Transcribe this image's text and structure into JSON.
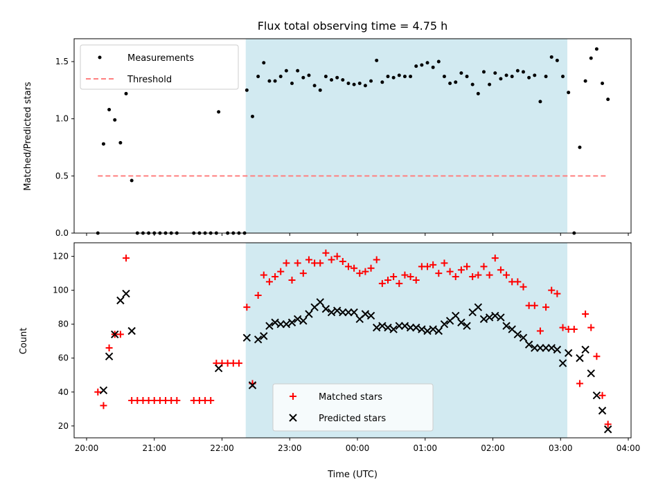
{
  "chart_data": [
    {
      "type": "scatter",
      "title": "Flux total observing time = 4.75 h",
      "ylabel": "Matched/Predicted stars",
      "ylim": [
        0,
        1.7
      ],
      "yticks": [
        0.0,
        0.5,
        1.0,
        1.5
      ],
      "ytick_labels": [
        "0.0",
        "0.5",
        "1.0",
        "1.5"
      ],
      "xlim": [
        "20:00",
        "04:00"
      ],
      "shaded_interval": [
        "22:21",
        "03:06"
      ],
      "shade_color": "#add8e6",
      "legend_position": "upper left",
      "series": [
        {
          "name": "Measurements",
          "marker": "dot",
          "color": "#000000",
          "points": [
            [
              "20:10",
              0.0
            ],
            [
              "20:15",
              0.78
            ],
            [
              "20:20",
              1.08
            ],
            [
              "20:25",
              0.99
            ],
            [
              "20:30",
              0.79
            ],
            [
              "20:35",
              1.22
            ],
            [
              "20:40",
              0.46
            ],
            [
              "20:45",
              0.0
            ],
            [
              "20:50",
              0.0
            ],
            [
              "20:55",
              0.0
            ],
            [
              "21:00",
              0.0
            ],
            [
              "21:05",
              0.0
            ],
            [
              "21:10",
              0.0
            ],
            [
              "21:15",
              0.0
            ],
            [
              "21:20",
              0.0
            ],
            [
              "21:35",
              0.0
            ],
            [
              "21:40",
              0.0
            ],
            [
              "21:45",
              0.0
            ],
            [
              "21:50",
              0.0
            ],
            [
              "21:55",
              0.0
            ],
            [
              "21:57",
              1.06
            ],
            [
              "22:05",
              0.0
            ],
            [
              "22:10",
              0.0
            ],
            [
              "22:15",
              0.0
            ],
            [
              "22:20",
              0.0
            ],
            [
              "22:22",
              1.25
            ],
            [
              "22:27",
              1.02
            ],
            [
              "22:32",
              1.37
            ],
            [
              "22:37",
              1.49
            ],
            [
              "22:42",
              1.33
            ],
            [
              "22:47",
              1.33
            ],
            [
              "22:52",
              1.37
            ],
            [
              "22:57",
              1.42
            ],
            [
              "23:02",
              1.31
            ],
            [
              "23:07",
              1.42
            ],
            [
              "23:12",
              1.36
            ],
            [
              "23:17",
              1.38
            ],
            [
              "23:22",
              1.29
            ],
            [
              "23:27",
              1.25
            ],
            [
              "23:32",
              1.37
            ],
            [
              "23:37",
              1.34
            ],
            [
              "23:42",
              1.36
            ],
            [
              "23:47",
              1.34
            ],
            [
              "23:52",
              1.31
            ],
            [
              "23:57",
              1.3
            ],
            [
              "00:02",
              1.31
            ],
            [
              "00:07",
              1.29
            ],
            [
              "00:12",
              1.33
            ],
            [
              "00:17",
              1.51
            ],
            [
              "00:22",
              1.32
            ],
            [
              "00:27",
              1.37
            ],
            [
              "00:32",
              1.36
            ],
            [
              "00:37",
              1.38
            ],
            [
              "00:42",
              1.37
            ],
            [
              "00:47",
              1.37
            ],
            [
              "00:52",
              1.46
            ],
            [
              "00:57",
              1.47
            ],
            [
              "01:02",
              1.49
            ],
            [
              "01:07",
              1.45
            ],
            [
              "01:12",
              1.5
            ],
            [
              "01:17",
              1.37
            ],
            [
              "01:22",
              1.31
            ],
            [
              "01:27",
              1.32
            ],
            [
              "01:32",
              1.4
            ],
            [
              "01:37",
              1.37
            ],
            [
              "01:42",
              1.3
            ],
            [
              "01:47",
              1.22
            ],
            [
              "01:52",
              1.41
            ],
            [
              "01:57",
              1.3
            ],
            [
              "02:02",
              1.4
            ],
            [
              "02:07",
              1.35
            ],
            [
              "02:12",
              1.38
            ],
            [
              "02:17",
              1.37
            ],
            [
              "02:22",
              1.42
            ],
            [
              "02:27",
              1.41
            ],
            [
              "02:32",
              1.36
            ],
            [
              "02:37",
              1.38
            ],
            [
              "02:42",
              1.15
            ],
            [
              "02:47",
              1.37
            ],
            [
              "02:52",
              1.54
            ],
            [
              "02:57",
              1.51
            ],
            [
              "03:02",
              1.37
            ],
            [
              "03:07",
              1.23
            ],
            [
              "03:12",
              0.0
            ],
            [
              "03:17",
              0.75
            ],
            [
              "03:22",
              1.33
            ],
            [
              "03:27",
              1.53
            ],
            [
              "03:32",
              1.61
            ],
            [
              "03:37",
              1.31
            ],
            [
              "03:42",
              1.17
            ]
          ]
        },
        {
          "name": "Threshold",
          "line_style": "dashed",
          "color": "#ff7f7f",
          "points": [
            [
              "20:10",
              0.5
            ],
            [
              "03:42",
              0.5
            ]
          ]
        }
      ]
    },
    {
      "type": "scatter",
      "xlabel": "Time (UTC)",
      "ylabel": "Count",
      "ylim": [
        13,
        128
      ],
      "yticks": [
        20,
        40,
        60,
        80,
        100,
        120
      ],
      "ytick_labels": [
        "20",
        "40",
        "60",
        "80",
        "100",
        "120"
      ],
      "xlim": [
        "20:00",
        "04:00"
      ],
      "xticks": [
        "20:00",
        "21:00",
        "22:00",
        "23:00",
        "00:00",
        "01:00",
        "02:00",
        "03:00",
        "04:00"
      ],
      "shaded_interval": [
        "22:21",
        "03:06"
      ],
      "shade_color": "#add8e6",
      "legend_position": "lower center",
      "series": [
        {
          "name": "Matched stars",
          "marker": "plus",
          "color": "#ff0000",
          "points": [
            [
              "20:10",
              40
            ],
            [
              "20:15",
              32
            ],
            [
              "20:20",
              66
            ],
            [
              "20:25",
              74
            ],
            [
              "20:30",
              74
            ],
            [
              "20:35",
              119
            ],
            [
              "20:40",
              35
            ],
            [
              "20:45",
              35
            ],
            [
              "20:50",
              35
            ],
            [
              "20:55",
              35
            ],
            [
              "21:00",
              35
            ],
            [
              "21:05",
              35
            ],
            [
              "21:10",
              35
            ],
            [
              "21:15",
              35
            ],
            [
              "21:20",
              35
            ],
            [
              "21:35",
              35
            ],
            [
              "21:40",
              35
            ],
            [
              "21:45",
              35
            ],
            [
              "21:50",
              35
            ],
            [
              "21:55",
              57
            ],
            [
              "22:00",
              57
            ],
            [
              "22:05",
              57
            ],
            [
              "22:10",
              57
            ],
            [
              "22:15",
              57
            ],
            [
              "22:22",
              90
            ],
            [
              "22:27",
              45
            ],
            [
              "22:32",
              97
            ],
            [
              "22:37",
              109
            ],
            [
              "22:42",
              105
            ],
            [
              "22:47",
              108
            ],
            [
              "22:52",
              111
            ],
            [
              "22:57",
              116
            ],
            [
              "23:02",
              106
            ],
            [
              "23:07",
              116
            ],
            [
              "23:12",
              110
            ],
            [
              "23:17",
              118
            ],
            [
              "23:22",
              116
            ],
            [
              "23:27",
              116
            ],
            [
              "23:32",
              122
            ],
            [
              "23:37",
              118
            ],
            [
              "23:42",
              120
            ],
            [
              "23:47",
              117
            ],
            [
              "23:52",
              114
            ],
            [
              "23:57",
              113
            ],
            [
              "00:02",
              110
            ],
            [
              "00:07",
              111
            ],
            [
              "00:12",
              113
            ],
            [
              "00:17",
              118
            ],
            [
              "00:22",
              104
            ],
            [
              "00:27",
              106
            ],
            [
              "00:32",
              108
            ],
            [
              "00:37",
              104
            ],
            [
              "00:42",
              109
            ],
            [
              "00:47",
              108
            ],
            [
              "00:52",
              106
            ],
            [
              "00:57",
              114
            ],
            [
              "01:02",
              114
            ],
            [
              "01:07",
              115
            ],
            [
              "01:12",
              110
            ],
            [
              "01:17",
              116
            ],
            [
              "01:22",
              111
            ],
            [
              "01:27",
              108
            ],
            [
              "01:32",
              112
            ],
            [
              "01:37",
              114
            ],
            [
              "01:42",
              108
            ],
            [
              "01:47",
              109
            ],
            [
              "01:52",
              114
            ],
            [
              "01:57",
              109
            ],
            [
              "02:02",
              119
            ],
            [
              "02:07",
              112
            ],
            [
              "02:12",
              109
            ],
            [
              "02:17",
              105
            ],
            [
              "02:22",
              105
            ],
            [
              "02:27",
              102
            ],
            [
              "02:32",
              91
            ],
            [
              "02:37",
              91
            ],
            [
              "02:42",
              76
            ],
            [
              "02:47",
              90
            ],
            [
              "02:52",
              100
            ],
            [
              "02:57",
              98
            ],
            [
              "03:02",
              78
            ],
            [
              "03:07",
              77
            ],
            [
              "03:12",
              77
            ],
            [
              "03:17",
              45
            ],
            [
              "03:22",
              86
            ],
            [
              "03:27",
              78
            ],
            [
              "03:32",
              61
            ],
            [
              "03:37",
              38
            ],
            [
              "03:42",
              21
            ]
          ]
        },
        {
          "name": "Predicted stars",
          "marker": "x",
          "color": "#000000",
          "points": [
            [
              "20:15",
              41
            ],
            [
              "20:20",
              61
            ],
            [
              "20:25",
              74
            ],
            [
              "20:30",
              94
            ],
            [
              "20:35",
              98
            ],
            [
              "20:40",
              76
            ],
            [
              "21:57",
              54
            ],
            [
              "22:22",
              72
            ],
            [
              "22:27",
              44
            ],
            [
              "22:32",
              71
            ],
            [
              "22:37",
              73
            ],
            [
              "22:42",
              79
            ],
            [
              "22:47",
              81
            ],
            [
              "22:52",
              80
            ],
            [
              "22:57",
              80
            ],
            [
              "23:02",
              81
            ],
            [
              "23:07",
              83
            ],
            [
              "23:12",
              82
            ],
            [
              "23:17",
              86
            ],
            [
              "23:22",
              90
            ],
            [
              "23:27",
              93
            ],
            [
              "23:32",
              89
            ],
            [
              "23:37",
              87
            ],
            [
              "23:42",
              88
            ],
            [
              "23:47",
              87
            ],
            [
              "23:52",
              87
            ],
            [
              "23:57",
              87
            ],
            [
              "00:02",
              83
            ],
            [
              "00:07",
              86
            ],
            [
              "00:12",
              85
            ],
            [
              "00:17",
              78
            ],
            [
              "00:22",
              79
            ],
            [
              "00:27",
              78
            ],
            [
              "00:32",
              77
            ],
            [
              "00:37",
              79
            ],
            [
              "00:42",
              79
            ],
            [
              "00:47",
              78
            ],
            [
              "00:52",
              78
            ],
            [
              "00:57",
              77
            ],
            [
              "01:02",
              76
            ],
            [
              "01:07",
              77
            ],
            [
              "01:12",
              76
            ],
            [
              "01:17",
              80
            ],
            [
              "01:22",
              82
            ],
            [
              "01:27",
              85
            ],
            [
              "01:32",
              81
            ],
            [
              "01:37",
              79
            ],
            [
              "01:42",
              87
            ],
            [
              "01:47",
              90
            ],
            [
              "01:52",
              83
            ],
            [
              "01:57",
              84
            ],
            [
              "02:02",
              85
            ],
            [
              "02:07",
              84
            ],
            [
              "02:12",
              79
            ],
            [
              "02:17",
              77
            ],
            [
              "02:22",
              74
            ],
            [
              "02:27",
              72
            ],
            [
              "02:32",
              68
            ],
            [
              "02:37",
              66
            ],
            [
              "02:42",
              66
            ],
            [
              "02:47",
              66
            ],
            [
              "02:52",
              66
            ],
            [
              "02:57",
              65
            ],
            [
              "03:02",
              57
            ],
            [
              "03:07",
              63
            ],
            [
              "03:17",
              60
            ],
            [
              "03:22",
              65
            ],
            [
              "03:27",
              51
            ],
            [
              "03:32",
              38
            ],
            [
              "03:37",
              29
            ],
            [
              "03:42",
              18
            ]
          ]
        }
      ]
    }
  ]
}
